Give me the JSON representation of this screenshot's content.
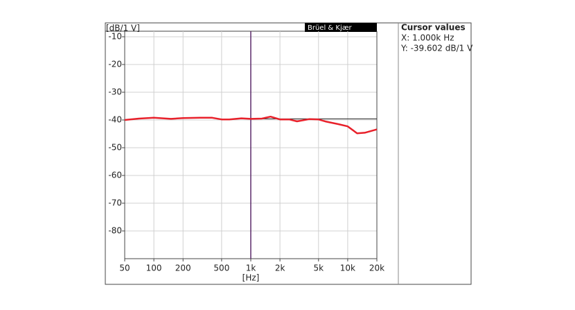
{
  "chart_data": {
    "type": "line",
    "ylabel": "[dB/1 V]",
    "xlabel": "[Hz]",
    "legend_label": "Brüel & Kjær",
    "x_scale": "log",
    "grid": true,
    "xlim": [
      50,
      20000
    ],
    "ylim": [
      -90,
      -8
    ],
    "xticks": [
      50,
      100,
      200,
      500,
      {
        "value": 1000,
        "label": "1k"
      },
      {
        "value": 2000,
        "label": "2k"
      },
      {
        "value": 5000,
        "label": "5k"
      },
      {
        "value": 10000,
        "label": "10k"
      },
      {
        "value": 20000,
        "label": "20k"
      }
    ],
    "yticks": [
      -10,
      -20,
      -30,
      -40,
      -50,
      -60,
      -70,
      -80
    ],
    "x": [
      50,
      70,
      100,
      150,
      200,
      300,
      400,
      500,
      600,
      800,
      1000,
      1300,
      1600,
      2000,
      2500,
      3000,
      4000,
      5000,
      6000,
      8000,
      10000,
      12500,
      15000,
      20000
    ],
    "series": [
      {
        "name": "Brüel & Kjær",
        "color": "#e8202a",
        "values": [
          -40,
          -39.5,
          -39.2,
          -39.6,
          -39.3,
          -39.2,
          -39.2,
          -39.8,
          -39.8,
          -39.4,
          -39.6,
          -39.5,
          -38.8,
          -39.8,
          -39.8,
          -40.5,
          -39.7,
          -39.8,
          -40.6,
          -41.5,
          -42.3,
          -44.8,
          -44.6,
          -43.4
        ]
      }
    ],
    "cursor": {
      "title": "Cursor values",
      "x": 1000,
      "y": -39.602,
      "x_label": "X: 1.000k Hz",
      "y_label": "Y: -39.602 dB/1 V"
    }
  }
}
